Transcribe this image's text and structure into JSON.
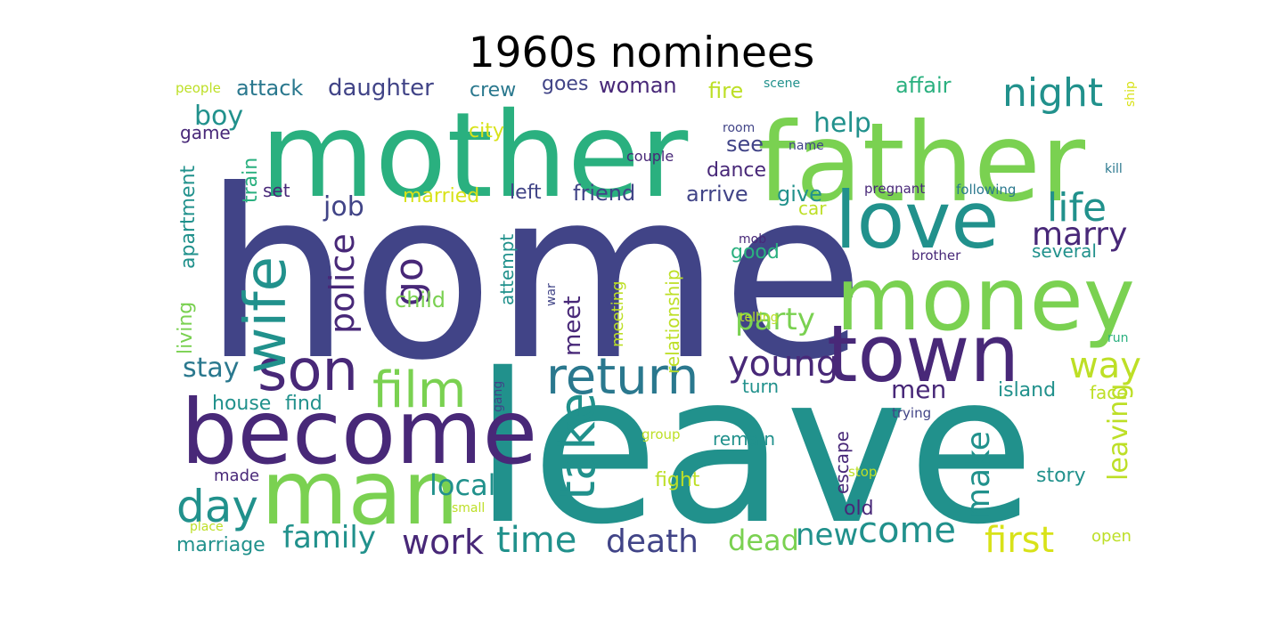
{
  "title": "1960s nominees",
  "palette": {
    "indigo": "#414487",
    "purple": "#482878",
    "teal": "#2a788e",
    "sea": "#21918c",
    "green": "#2ab07f",
    "lime": "#7ad151",
    "yellow": "#bddf26",
    "gold": "#d8e219"
  },
  "words": [
    {
      "text": "home"
    },
    {
      "text": "leave"
    },
    {
      "text": "mother"
    },
    {
      "text": "father"
    },
    {
      "text": "become"
    },
    {
      "text": "man"
    },
    {
      "text": "money"
    },
    {
      "text": "love"
    },
    {
      "text": "town"
    },
    {
      "text": "son"
    },
    {
      "text": "wife"
    },
    {
      "text": "return"
    },
    {
      "text": "film"
    },
    {
      "text": "take"
    },
    {
      "text": "night"
    },
    {
      "text": "day"
    },
    {
      "text": "young"
    },
    {
      "text": "life"
    },
    {
      "text": "go"
    },
    {
      "text": "police"
    },
    {
      "text": "come"
    },
    {
      "text": "first"
    },
    {
      "text": "time"
    },
    {
      "text": "work"
    },
    {
      "text": "death"
    },
    {
      "text": "family"
    },
    {
      "text": "way"
    },
    {
      "text": "make"
    },
    {
      "text": "marry"
    },
    {
      "text": "party"
    },
    {
      "text": "local"
    },
    {
      "text": "new"
    },
    {
      "text": "dead"
    },
    {
      "text": "leaving"
    },
    {
      "text": "help"
    },
    {
      "text": "job"
    },
    {
      "text": "boy"
    },
    {
      "text": "stay"
    },
    {
      "text": "men"
    },
    {
      "text": "meet"
    },
    {
      "text": "daughter"
    },
    {
      "text": "attack"
    },
    {
      "text": "woman"
    },
    {
      "text": "affair"
    },
    {
      "text": "fire"
    },
    {
      "text": "crew"
    },
    {
      "text": "goes"
    },
    {
      "text": "city"
    },
    {
      "text": "see"
    },
    {
      "text": "dance"
    },
    {
      "text": "arrive"
    },
    {
      "text": "give"
    },
    {
      "text": "friend"
    },
    {
      "text": "left"
    },
    {
      "text": "married"
    },
    {
      "text": "set"
    },
    {
      "text": "train"
    },
    {
      "text": "game"
    },
    {
      "text": "apartment"
    },
    {
      "text": "living"
    },
    {
      "text": "child"
    },
    {
      "text": "attempt"
    },
    {
      "text": "meeting"
    },
    {
      "text": "relationship"
    },
    {
      "text": "good"
    },
    {
      "text": "car"
    },
    {
      "text": "several"
    },
    {
      "text": "turn"
    },
    {
      "text": "island"
    },
    {
      "text": "face"
    },
    {
      "text": "house"
    },
    {
      "text": "find"
    },
    {
      "text": "remain"
    },
    {
      "text": "escape"
    },
    {
      "text": "fight"
    },
    {
      "text": "old"
    },
    {
      "text": "story"
    },
    {
      "text": "made"
    },
    {
      "text": "marriage"
    },
    {
      "text": "open"
    },
    {
      "text": "people"
    },
    {
      "text": "scene"
    },
    {
      "text": "ship"
    },
    {
      "text": "room"
    },
    {
      "text": "couple"
    },
    {
      "text": "name"
    },
    {
      "text": "kill"
    },
    {
      "text": "pregnant"
    },
    {
      "text": "following"
    },
    {
      "text": "mob"
    },
    {
      "text": "brother"
    },
    {
      "text": "war"
    },
    {
      "text": "telling"
    },
    {
      "text": "run"
    },
    {
      "text": "gang"
    },
    {
      "text": "trying"
    },
    {
      "text": "group"
    },
    {
      "text": "stop"
    },
    {
      "text": "small"
    },
    {
      "text": "place"
    }
  ]
}
